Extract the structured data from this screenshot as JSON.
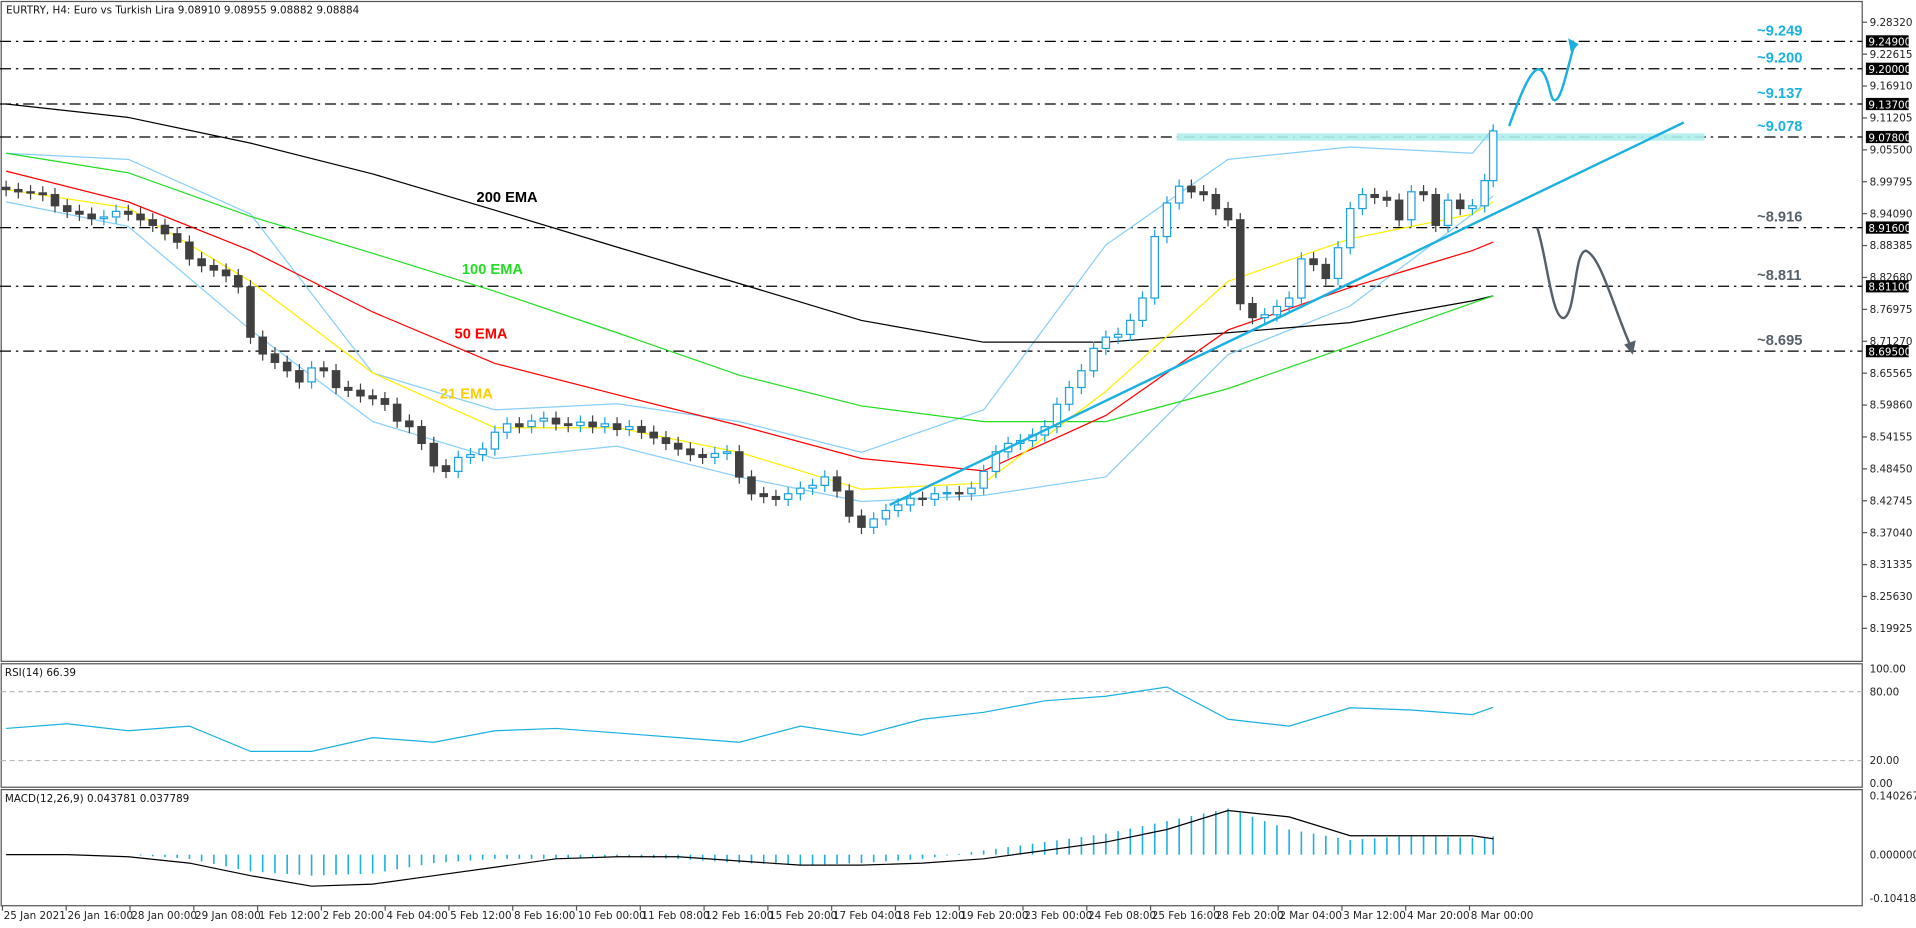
{
  "header": {
    "title": "EURTRY, H4:  Euro vs Turkish Lira  9.08910 9.08955 9.08882 9.08884",
    "rsi_label": "RSI(14) 66.39",
    "macd_label": "MACD(12,26,9) 0.043781 0.037789"
  },
  "colors": {
    "bull": "#1ba1e2",
    "bear": "#404040",
    "ema200": "#000000",
    "ema100": "#22dd22",
    "ema50": "#ff0000",
    "ema21": "#ffee00",
    "ema21_label": "#ffcc00",
    "bollinger": "#87cefa",
    "resistance": "#1ab0e0",
    "support": "#56606a",
    "zone": "#b0eeee",
    "rsi": "#1ab0e0",
    "macd_hist": "#1ab0e0",
    "macd_signal": "#000000"
  },
  "chart_data": {
    "type": "candlestick",
    "symbol": "EURTRY",
    "timeframe": "H4",
    "price_axis": {
      "range": [
        8.19925,
        9.2832
      ],
      "ticks": [
        "9.28320",
        "9.22615",
        "9.16910",
        "9.11205",
        "9.05500",
        "8.99795",
        "8.94090",
        "8.88385",
        "8.82680",
        "8.76975",
        "8.71270",
        "8.65565",
        "8.59860",
        "8.54155",
        "8.48450",
        "8.42745",
        "8.37040",
        "8.31335",
        "8.25630",
        "8.19925"
      ],
      "highlighted": [
        "9.24900",
        "9.20000",
        "9.13700",
        "9.07800",
        "8.91600",
        "8.81100",
        "8.69500"
      ]
    },
    "time_axis": [
      "25 Jan 2021",
      "26 Jan 16:00",
      "28 Jan 00:00",
      "29 Jan 08:00",
      "1 Feb 12:00",
      "2 Feb 20:00",
      "4 Feb 04:00",
      "5 Feb 12:00",
      "8 Feb 16:00",
      "10 Feb 00:00",
      "11 Feb 08:00",
      "12 Feb 16:00",
      "15 Feb 20:00",
      "17 Feb 04:00",
      "18 Feb 12:00",
      "19 Feb 20:00",
      "23 Feb 00:00",
      "24 Feb 08:00",
      "25 Feb 16:00",
      "28 Feb 20:00",
      "2 Mar 04:00",
      "3 Mar 12:00",
      "4 Mar 20:00",
      "8 Mar 00:00"
    ],
    "closes": [
      8.984,
      8.98,
      8.978,
      8.975,
      8.955,
      8.945,
      8.94,
      8.932,
      8.935,
      8.945,
      8.94,
      8.93,
      8.92,
      8.905,
      8.89,
      8.86,
      8.848,
      8.84,
      8.83,
      8.81,
      8.72,
      8.69,
      8.675,
      8.66,
      8.64,
      8.665,
      8.66,
      8.63,
      8.625,
      8.615,
      8.61,
      8.6,
      8.57,
      8.56,
      8.53,
      8.49,
      8.48,
      8.505,
      8.51,
      8.52,
      8.55,
      8.565,
      8.56,
      8.57,
      8.575,
      8.565,
      8.562,
      8.568,
      8.56,
      8.565,
      8.555,
      8.56,
      8.55,
      8.54,
      8.53,
      8.52,
      8.51,
      8.505,
      8.512,
      8.515,
      8.47,
      8.44,
      8.435,
      8.43,
      8.44,
      8.45,
      8.455,
      8.47,
      8.445,
      8.4,
      8.38,
      8.395,
      8.41,
      8.42,
      8.432,
      8.43,
      8.44,
      8.442,
      8.44,
      8.45,
      8.48,
      8.515,
      8.53,
      8.535,
      8.545,
      8.56,
      8.6,
      8.63,
      8.66,
      8.7,
      8.72,
      8.725,
      8.75,
      8.79,
      8.9,
      8.96,
      8.99,
      8.98,
      8.975,
      8.95,
      8.93,
      8.78,
      8.755,
      8.76,
      8.775,
      8.79,
      8.86,
      8.85,
      8.825,
      8.88,
      8.95,
      8.975,
      8.97,
      8.965,
      8.93,
      8.98,
      8.975,
      8.92,
      8.965,
      8.95,
      8.955,
      9.0,
      9.08884
    ],
    "indicators": {
      "ema200": {
        "name": "200 EMA",
        "values": [
          9.137,
          9.113,
          9.067,
          9.012,
          8.947,
          8.881,
          8.816,
          8.75,
          8.711,
          8.711,
          8.728,
          8.746,
          8.785,
          8.794
        ]
      },
      "ema100": {
        "name": "100 EMA",
        "values": [
          9.049,
          9.014,
          8.936,
          8.87,
          8.802,
          8.728,
          8.652,
          8.597,
          8.569,
          8.569,
          8.628,
          8.704,
          8.781,
          8.794
        ]
      },
      "ema50": {
        "name": "50 EMA",
        "values": [
          9.017,
          8.962,
          8.875,
          8.765,
          8.673,
          8.617,
          8.562,
          8.503,
          8.481,
          8.58,
          8.733,
          8.809,
          8.875,
          8.89
        ]
      },
      "ema21": {
        "name": "21 EMA",
        "values": [
          8.984,
          8.951,
          8.82,
          8.656,
          8.558,
          8.558,
          8.514,
          8.448,
          8.459,
          8.623,
          8.82,
          8.896,
          8.94,
          8.962
        ]
      },
      "bb_upper": {
        "values": [
          9.049,
          9.038,
          8.94,
          8.656,
          8.59,
          8.601,
          8.569,
          8.514,
          8.59,
          8.885,
          9.038,
          9.06,
          9.049,
          9.093
        ]
      },
      "bb_lower": {
        "values": [
          8.962,
          8.918,
          8.733,
          8.569,
          8.503,
          8.525,
          8.47,
          8.426,
          8.437,
          8.47,
          8.689,
          8.776,
          8.94,
          8.973
        ]
      }
    },
    "levels": [
      {
        "label": "~9.249",
        "value": 9.249,
        "kind": "resistance"
      },
      {
        "label": "~9.200",
        "value": 9.2,
        "kind": "resistance"
      },
      {
        "label": "~9.137",
        "value": 9.137,
        "kind": "resistance"
      },
      {
        "label": "~9.078",
        "value": 9.078,
        "kind": "resistance"
      },
      {
        "label": "~8.916",
        "value": 8.916,
        "kind": "support"
      },
      {
        "label": "~8.811",
        "value": 8.811,
        "kind": "support"
      },
      {
        "label": "~8.695",
        "value": 8.695,
        "kind": "support"
      }
    ],
    "rsi": {
      "range": [
        0,
        100
      ],
      "ticks": [
        "100.00",
        "80.00",
        "20.00",
        "0.00"
      ],
      "values": [
        48,
        52,
        46,
        50,
        28,
        28,
        40,
        36,
        46,
        48,
        44,
        40,
        36,
        50,
        42,
        56,
        62,
        72,
        76,
        84,
        56,
        50,
        66,
        64,
        60,
        66.39
      ]
    },
    "macd": {
      "range": [
        -0.104183,
        0.140267
      ],
      "ticks": [
        "0.140267",
        "0.000000",
        "-0.104183"
      ],
      "histogram": [
        0,
        0,
        0,
        -0.01,
        -0.04,
        -0.05,
        -0.045,
        -0.02,
        -0.01,
        -0.01,
        -0.005,
        -0.01,
        -0.02,
        -0.025,
        -0.02,
        -0.01,
        0.01,
        0.03,
        0.05,
        0.08,
        0.11,
        0.06,
        0.035,
        0.045,
        0.04,
        0.043781
      ],
      "signal": [
        0,
        0,
        -0.005,
        -0.02,
        -0.05,
        -0.075,
        -0.07,
        -0.05,
        -0.03,
        -0.01,
        -0.005,
        -0.005,
        -0.015,
        -0.025,
        -0.025,
        -0.02,
        -0.01,
        0.01,
        0.03,
        0.06,
        0.105,
        0.09,
        0.045,
        0.045,
        0.045,
        0.037789
      ]
    }
  }
}
